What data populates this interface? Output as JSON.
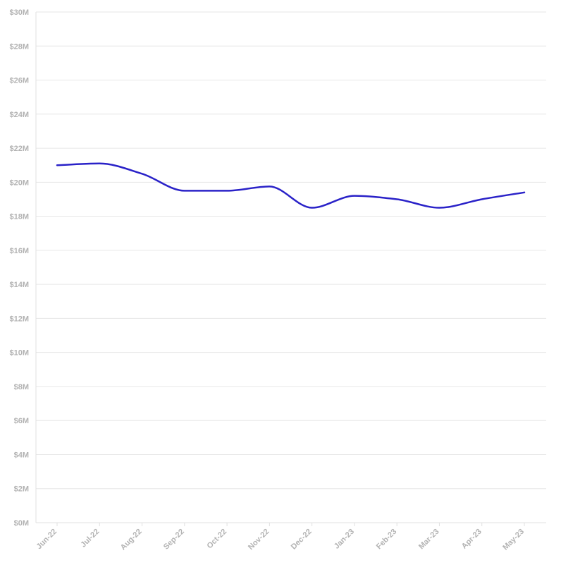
{
  "chart_data": {
    "type": "line",
    "title": "",
    "xlabel": "",
    "ylabel": "",
    "categories": [
      "Jun-22",
      "Jul-22",
      "Aug-22",
      "Sep-22",
      "Oct-22",
      "Nov-22",
      "Dec-22",
      "Jan-23",
      "Feb-23",
      "Mar-23",
      "Apr-23",
      "May-23"
    ],
    "series": [
      {
        "values": [
          21.0,
          21.1,
          20.5,
          19.5,
          19.5,
          19.75,
          18.5,
          19.2,
          19.0,
          18.5,
          19.0,
          19.4
        ],
        "color": "#2a22c8"
      }
    ],
    "ylim": [
      0,
      30
    ],
    "y_ticks": [
      0,
      2,
      4,
      6,
      8,
      10,
      12,
      14,
      16,
      18,
      20,
      22,
      24,
      26,
      28,
      30
    ],
    "y_tick_labels": [
      "$0M",
      "$2M",
      "$4M",
      "$6M",
      "$8M",
      "$10M",
      "$12M",
      "$14M",
      "$16M",
      "$18M",
      "$20M",
      "$22M",
      "$24M",
      "$26M",
      "$28M",
      "$30M"
    ],
    "grid": true,
    "legend": "none"
  }
}
